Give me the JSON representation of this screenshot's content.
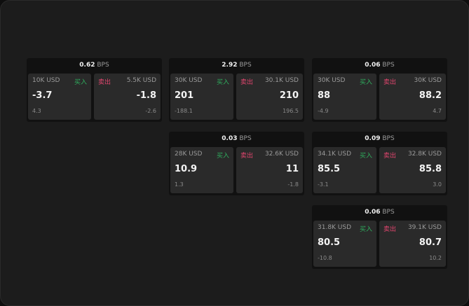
{
  "unit": "BPS",
  "buy_label": "买入",
  "sell_label": "卖出",
  "colors": {
    "buy": "#2fae5e",
    "sell": "#e0456e",
    "background": "#1c1c1c"
  },
  "cards": [
    {
      "spread": "0.62",
      "bid_size": "10K USD",
      "bid": "-3.7",
      "bid_change": "4.3",
      "ask_size": "5.5K USD",
      "ask": "-1.8",
      "ask_change": "-2.6"
    },
    {
      "spread": "2.92",
      "bid_size": "30K USD",
      "bid": "201",
      "bid_change": "-188.1",
      "ask_size": "30.1K USD",
      "ask": "210",
      "ask_change": "196.5"
    },
    {
      "spread": "0.06",
      "bid_size": "30K USD",
      "bid": "88",
      "bid_change": "-4.9",
      "ask_size": "30K USD",
      "ask": "88.2",
      "ask_change": "4.7"
    },
    {
      "spread": "0.03",
      "bid_size": "28K USD",
      "bid": "10.9",
      "bid_change": "1.3",
      "ask_size": "32.6K USD",
      "ask": "11",
      "ask_change": "-1.8"
    },
    {
      "spread": "0.09",
      "bid_size": "34.1K USD",
      "bid": "85.5",
      "bid_change": "-3.1",
      "ask_size": "32.8K USD",
      "ask": "85.8",
      "ask_change": "3.0"
    },
    {
      "spread": "0.06",
      "bid_size": "31.8K USD",
      "bid": "80.5",
      "bid_change": "-10.8",
      "ask_size": "39.1K USD",
      "ask": "80.7",
      "ask_change": "10.2"
    }
  ]
}
